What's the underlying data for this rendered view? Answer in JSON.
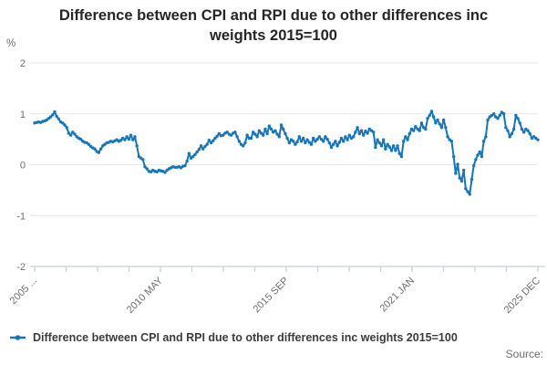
{
  "header": {
    "title": "Difference between CPI and RPI due to other differences inc weights 2015=100"
  },
  "y_axis": {
    "unit": "%",
    "tick_labels": [
      "2",
      "1",
      "0",
      "-1",
      "-2"
    ],
    "tick_values": [
      2,
      1,
      0,
      -1,
      -2
    ]
  },
  "x_axis": {
    "tick_labels": [
      "2005 ...",
      "2010 MAY",
      "2015 SEP",
      "2021 JAN",
      "2025 DEC"
    ],
    "minor_tick_count": 17
  },
  "legend": {
    "items": [
      {
        "label": "Difference between CPI and RPI due to other differences inc weights 2015=100"
      }
    ]
  },
  "footer": {
    "source_label": "Source:"
  },
  "colors": {
    "line": "#1776b8",
    "grid": "#e7e7e7",
    "axis": "#c7d0e0",
    "tick_text": "#6e6e6e",
    "title_text": "#262626",
    "legend_text": "#3c3c3c"
  },
  "chart_data": {
    "type": "line",
    "title": "Difference between CPI and RPI due to other differences inc weights 2015=100",
    "xlabel": "",
    "ylabel": "%",
    "ylim": [
      -2,
      2
    ],
    "yticks": [
      2,
      1,
      0,
      -1,
      -2
    ],
    "x_start": "2005 JAN",
    "x_end": "2025 DEC",
    "frequency": "monthly",
    "x_tick_labels": [
      "2005 ...",
      "2010 MAY",
      "2015 SEP",
      "2021 JAN",
      "2025 DEC"
    ],
    "grid": "horizontal",
    "legend_position": "bottom-left",
    "marker": "dot",
    "series": [
      {
        "name": "Difference between CPI and RPI due to other differences inc weights 2015=100",
        "color": "#1776b8",
        "values": [
          0.82,
          0.83,
          0.84,
          0.83,
          0.85,
          0.86,
          0.88,
          0.91,
          0.94,
          0.98,
          1.04,
          0.95,
          0.9,
          0.84,
          0.82,
          0.78,
          0.73,
          0.62,
          0.58,
          0.64,
          0.6,
          0.55,
          0.52,
          0.5,
          0.46,
          0.44,
          0.43,
          0.4,
          0.36,
          0.33,
          0.31,
          0.26,
          0.24,
          0.31,
          0.37,
          0.4,
          0.43,
          0.44,
          0.46,
          0.45,
          0.47,
          0.49,
          0.46,
          0.48,
          0.52,
          0.49,
          0.55,
          0.5,
          0.58,
          0.49,
          0.55,
          0.37,
          0.16,
          0.13,
          0.1,
          -0.04,
          -0.08,
          -0.13,
          -0.14,
          -0.11,
          -0.13,
          -0.14,
          -0.11,
          -0.12,
          -0.13,
          -0.15,
          -0.11,
          -0.08,
          -0.06,
          -0.04,
          -0.05,
          -0.05,
          -0.04,
          -0.06,
          -0.03,
          -0.02,
          0.07,
          0.22,
          0.13,
          0.16,
          0.2,
          0.25,
          0.3,
          0.37,
          0.31,
          0.36,
          0.4,
          0.48,
          0.43,
          0.47,
          0.52,
          0.56,
          0.61,
          0.57,
          0.58,
          0.62,
          0.64,
          0.6,
          0.58,
          0.62,
          0.64,
          0.55,
          0.46,
          0.4,
          0.37,
          0.43,
          0.58,
          0.52,
          0.52,
          0.64,
          0.6,
          0.55,
          0.67,
          0.62,
          0.58,
          0.7,
          0.61,
          0.76,
          0.7,
          0.64,
          0.67,
          0.6,
          0.55,
          0.78,
          0.7,
          0.61,
          0.52,
          0.43,
          0.49,
          0.46,
          0.4,
          0.45,
          0.55,
          0.46,
          0.52,
          0.43,
          0.49,
          0.44,
          0.4,
          0.52,
          0.46,
          0.5,
          0.55,
          0.5,
          0.46,
          0.55,
          0.5,
          0.43,
          0.34,
          0.4,
          0.46,
          0.37,
          0.44,
          0.52,
          0.46,
          0.55,
          0.49,
          0.58,
          0.52,
          0.55,
          0.64,
          0.73,
          0.61,
          0.67,
          0.58,
          0.66,
          0.62,
          0.7,
          0.67,
          0.64,
          0.34,
          0.49,
          0.43,
          0.37,
          0.49,
          0.31,
          0.4,
          0.35,
          0.28,
          0.37,
          0.28,
          0.37,
          0.22,
          0.16,
          0.46,
          0.55,
          0.49,
          0.61,
          0.7,
          0.67,
          0.75,
          0.7,
          0.67,
          0.82,
          0.73,
          0.7,
          0.91,
          0.97,
          1.05,
          0.94,
          0.82,
          0.88,
          0.8,
          0.73,
          0.88,
          0.73,
          0.55,
          0.49,
          0.46,
          0.16,
          -0.17,
          0.01,
          -0.26,
          -0.32,
          -0.11,
          -0.47,
          -0.53,
          -0.58,
          -0.29,
          -0.02,
          0.1,
          0.19,
          0.25,
          0.16,
          0.46,
          0.55,
          0.88,
          0.94,
          0.97,
          1.0,
          0.94,
          0.91,
          0.97,
          1.03,
          1.0,
          0.73,
          0.67,
          0.55,
          0.61,
          0.7,
          0.97,
          0.91,
          0.82,
          0.7,
          0.64,
          0.7,
          0.67,
          0.61,
          0.52,
          0.55,
          0.52,
          0.49
        ]
      }
    ]
  }
}
